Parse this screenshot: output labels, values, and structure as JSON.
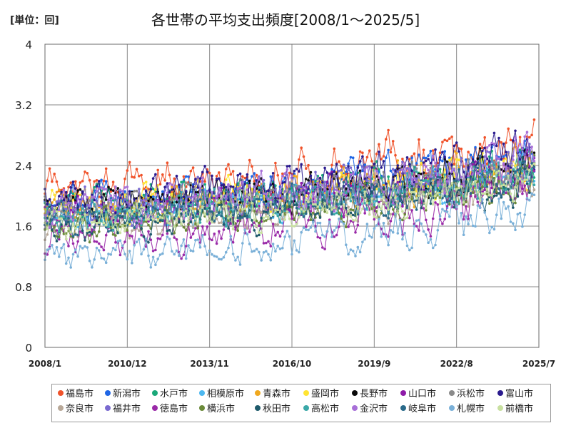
{
  "unit_label": "[単位：回]",
  "chart_data": {
    "type": "line",
    "title": "各世帯の平均支出頻度[2008/1～2025/5]",
    "xlabel": "",
    "ylabel": "",
    "ylim": [
      0,
      4
    ],
    "yticks": [
      "0",
      "0.8",
      "1.6",
      "2.4",
      "3.2",
      "4"
    ],
    "ytick_values": [
      0,
      0.8,
      1.6,
      2.4,
      3.2,
      4.0
    ],
    "xticks": [
      "2008/1",
      "2010/12",
      "2013/11",
      "2016/10",
      "2019/9",
      "2022/8",
      "2025/7"
    ],
    "x_start": "2008/1",
    "x_end": "2025/7",
    "x_last_data": "2025/5",
    "grid": true,
    "legend_position": "bottom",
    "series": [
      {
        "name": "福島市",
        "color": "#f0522a",
        "start": 2.1,
        "end": 2.5,
        "amp": 0.34
      },
      {
        "name": "新潟市",
        "color": "#1f66e5",
        "start": 1.9,
        "end": 2.3,
        "amp": 0.3
      },
      {
        "name": "水戸市",
        "color": "#1aa879",
        "start": 1.85,
        "end": 2.2,
        "amp": 0.3
      },
      {
        "name": "相模原市",
        "color": "#4db8f0",
        "start": 1.7,
        "end": 2.1,
        "amp": 0.25
      },
      {
        "name": "青森市",
        "color": "#f0a81e",
        "start": 1.8,
        "end": 2.2,
        "amp": 0.28
      },
      {
        "name": "盛岡市",
        "color": "#ffe433",
        "start": 1.85,
        "end": 2.2,
        "amp": 0.3
      },
      {
        "name": "長野市",
        "color": "#0a0a0a",
        "start": 1.9,
        "end": 2.2,
        "amp": 0.28
      },
      {
        "name": "山口市",
        "color": "#8e1aa8",
        "start": 1.7,
        "end": 2.1,
        "amp": 0.3
      },
      {
        "name": "浜松市",
        "color": "#8a8a8a",
        "start": 1.8,
        "end": 2.15,
        "amp": 0.28
      },
      {
        "name": "富山市",
        "color": "#2a1a8e",
        "start": 1.9,
        "end": 2.4,
        "amp": 0.33
      },
      {
        "name": "奈良市",
        "color": "#b8a898",
        "start": 1.6,
        "end": 2.0,
        "amp": 0.25
      },
      {
        "name": "福井市",
        "color": "#7a6ad0",
        "start": 1.8,
        "end": 2.3,
        "amp": 0.33
      },
      {
        "name": "徳島市",
        "color": "#9a2aa8",
        "start": 1.4,
        "end": 1.8,
        "amp": 0.3
      },
      {
        "name": "横浜市",
        "color": "#6b8a3a",
        "start": 1.6,
        "end": 2.0,
        "amp": 0.25
      },
      {
        "name": "秋田市",
        "color": "#1e5a6b",
        "start": 1.6,
        "end": 2.0,
        "amp": 0.27
      },
      {
        "name": "高松市",
        "color": "#3aa8a8",
        "start": 1.7,
        "end": 2.1,
        "amp": 0.27
      },
      {
        "name": "金沢市",
        "color": "#a870d8",
        "start": 1.8,
        "end": 2.3,
        "amp": 0.32
      },
      {
        "name": "岐阜市",
        "color": "#2a6a8a",
        "start": 1.7,
        "end": 2.1,
        "amp": 0.27
      },
      {
        "name": "札幌市",
        "color": "#7ab0d8",
        "start": 1.2,
        "end": 1.6,
        "amp": 0.28
      },
      {
        "name": "前橋市",
        "color": "#c8e0a0",
        "start": 1.6,
        "end": 2.0,
        "amp": 0.24
      }
    ]
  }
}
